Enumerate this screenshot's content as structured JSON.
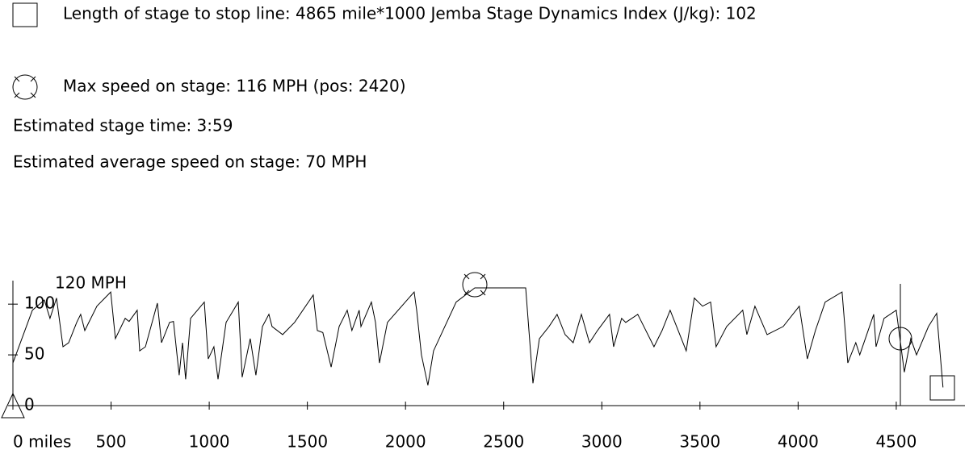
{
  "chart_data": {
    "type": "line",
    "info": [
      "Length of stage to stop line: 4865 mile*1000 Jemba Stage Dynamics Index (J/kg): 102",
      "Max speed on stage: 116 MPH (pos: 2420)",
      "Estimated stage time: 3:59",
      "Estimated average speed on stage: 70 MPH"
    ],
    "y_unit_label": "120 MPH",
    "color": "#000000",
    "xlim": [
      0,
      4850
    ],
    "ylim": [
      0,
      120
    ],
    "xticks": [
      {
        "value": 0,
        "label": "0 miles"
      },
      500,
      1000,
      1500,
      2000,
      2500,
      3000,
      3500,
      4000,
      4500
    ],
    "yticks": [
      0,
      50,
      100
    ],
    "x": [
      0,
      99,
      160,
      189,
      222,
      255,
      284,
      325,
      345,
      366,
      428,
      498,
      522,
      572,
      592,
      633,
      646,
      675,
      736,
      757,
      798,
      818,
      847,
      864,
      880,
      905,
      975,
      995,
      1024,
      1045,
      1086,
      1148,
      1168,
      1209,
      1238,
      1271,
      1304,
      1320,
      1374,
      1435,
      1530,
      1551,
      1579,
      1621,
      1662,
      1703,
      1727,
      1764,
      1773,
      1826,
      1847,
      1867,
      1908,
      2044,
      2057,
      2081,
      2114,
      2143,
      2258,
      2353,
      2612,
      2649,
      2682,
      2731,
      2772,
      2813,
      2854,
      2896,
      2937,
      2978,
      3039,
      3060,
      3101,
      3122,
      3183,
      3266,
      3307,
      3348,
      3430,
      3471,
      3513,
      3554,
      3582,
      3636,
      3718,
      3739,
      3780,
      3842,
      3924,
      4006,
      4047,
      4088,
      4138,
      4224,
      4253,
      4294,
      4314,
      4385,
      4397,
      4438,
      4500,
      4541,
      4574,
      4603,
      4664,
      4706,
      4738
    ],
    "values": [
      42,
      94,
      104,
      86,
      106,
      58,
      62,
      82,
      90,
      74,
      98,
      112,
      66,
      86,
      83,
      94,
      54,
      58,
      101,
      62,
      82,
      83,
      30,
      62,
      26,
      86,
      102,
      46,
      58,
      26,
      82,
      102,
      28,
      66,
      30,
      78,
      90,
      78,
      70,
      82,
      109,
      74,
      72,
      38,
      78,
      94,
      74,
      94,
      78,
      102,
      82,
      42,
      82,
      112,
      94,
      50,
      20,
      54,
      102,
      116,
      116,
      22,
      66,
      78,
      90,
      70,
      62,
      90,
      62,
      74,
      90,
      58,
      86,
      82,
      90,
      58,
      74,
      94,
      54,
      106,
      98,
      102,
      58,
      78,
      94,
      70,
      98,
      70,
      78,
      98,
      46,
      74,
      102,
      112,
      42,
      62,
      50,
      90,
      58,
      86,
      94,
      33,
      66,
      50,
      78,
      91,
      18
    ]
  }
}
